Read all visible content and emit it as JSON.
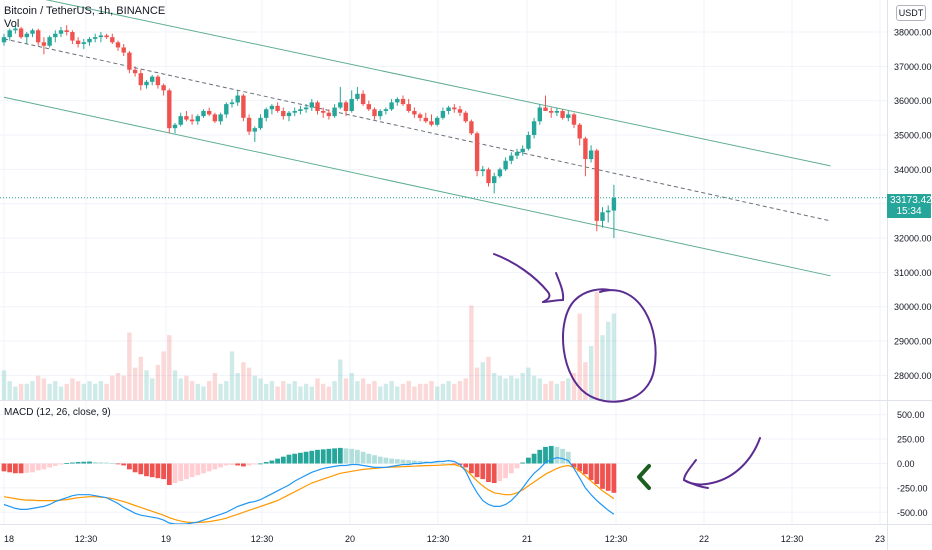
{
  "header": {
    "symbol": "Bitcoin / TetherUS, 1h, BINANCE",
    "volume_label": "Vol",
    "macd_label": "MACD (12, 26, close, 9)",
    "currency_button": "USDT"
  },
  "price_badge": {
    "value": "33173.42",
    "countdown": "15:34"
  },
  "colors": {
    "up": "#26a69a",
    "down": "#ef5350",
    "channel": "#5fae92",
    "macd_line": "#2196f3",
    "signal_line": "#ff9800",
    "annotation": "#5c2d91",
    "arrow_marker": "#1b5e20"
  },
  "chart_data": [
    {
      "type": "candlestick",
      "title": "Bitcoin / TetherUS, 1h, BINANCE",
      "x_tick_labels": [
        "18",
        "12:30",
        "19",
        "12:30",
        "20",
        "12:30",
        "21",
        "12:30",
        "22",
        "12:30",
        "23"
      ],
      "y_tick_labels": [
        "38000.00",
        "37000.00",
        "36000.00",
        "35000.00",
        "34000.00",
        "33000.00",
        "32000.00",
        "31000.00",
        "30000.00",
        "29000.00",
        "28000.00"
      ],
      "ylim": [
        27600,
        38400
      ],
      "last_price": 33173.42,
      "candles_ohlc": [
        [
          37700,
          37950,
          37600,
          37850
        ],
        [
          37850,
          38100,
          37750,
          38050
        ],
        [
          38050,
          38200,
          37950,
          38100
        ],
        [
          38100,
          38150,
          37800,
          37850
        ],
        [
          37850,
          38000,
          37650,
          37950
        ],
        [
          37950,
          38100,
          37850,
          38050
        ],
        [
          38050,
          38100,
          37600,
          37700
        ],
        [
          37700,
          37850,
          37350,
          37600
        ],
        [
          37600,
          37900,
          37550,
          37850
        ],
        [
          37850,
          38050,
          37700,
          37950
        ],
        [
          37950,
          38150,
          37850,
          38050
        ],
        [
          38050,
          38200,
          37900,
          38000
        ],
        [
          38000,
          38050,
          37650,
          37750
        ],
        [
          37750,
          37850,
          37550,
          37650
        ],
        [
          37650,
          37800,
          37500,
          37700
        ],
        [
          37700,
          37850,
          37600,
          37800
        ],
        [
          37800,
          37950,
          37700,
          37850
        ],
        [
          37850,
          38000,
          37700,
          37900
        ],
        [
          37900,
          37950,
          37800,
          37850
        ],
        [
          37850,
          37950,
          37650,
          37700
        ],
        [
          37700,
          37750,
          37450,
          37550
        ],
        [
          37550,
          37650,
          37300,
          37400
        ],
        [
          37400,
          37450,
          36800,
          36900
        ],
        [
          36900,
          37000,
          36700,
          36800
        ],
        [
          36800,
          36900,
          36300,
          36450
        ],
        [
          36450,
          36600,
          36350,
          36550
        ],
        [
          36550,
          36750,
          36450,
          36700
        ],
        [
          36700,
          36750,
          36350,
          36450
        ],
        [
          36450,
          36500,
          36150,
          36300
        ],
        [
          36300,
          36350,
          35050,
          35200
        ],
        [
          35200,
          35350,
          35050,
          35300
        ],
        [
          35300,
          35650,
          35250,
          35550
        ],
        [
          35550,
          35700,
          35400,
          35450
        ],
        [
          35450,
          35600,
          35300,
          35400
        ],
        [
          35400,
          35600,
          35300,
          35550
        ],
        [
          35550,
          35750,
          35500,
          35700
        ],
        [
          35700,
          35800,
          35550,
          35600
        ],
        [
          35600,
          35650,
          35350,
          35400
        ],
        [
          35400,
          35650,
          35300,
          35600
        ],
        [
          35600,
          35950,
          35500,
          35900
        ],
        [
          35900,
          36050,
          35800,
          35950
        ],
        [
          35950,
          36300,
          35850,
          36150
        ],
        [
          36150,
          36200,
          35400,
          35500
        ],
        [
          35500,
          35600,
          35000,
          35100
        ],
        [
          35100,
          35250,
          34800,
          35200
        ],
        [
          35200,
          35600,
          35150,
          35500
        ],
        [
          35500,
          35800,
          35400,
          35750
        ],
        [
          35750,
          35900,
          35600,
          35850
        ],
        [
          35850,
          35950,
          35650,
          35700
        ],
        [
          35700,
          35800,
          35450,
          35550
        ],
        [
          35550,
          35700,
          35400,
          35650
        ],
        [
          35650,
          35800,
          35550,
          35700
        ],
        [
          35700,
          35850,
          35600,
          35750
        ],
        [
          35750,
          35900,
          35650,
          35800
        ],
        [
          35800,
          36050,
          35700,
          35950
        ],
        [
          35950,
          36000,
          35600,
          35700
        ],
        [
          35700,
          35800,
          35500,
          35650
        ],
        [
          35650,
          35750,
          35450,
          35550
        ],
        [
          35550,
          35900,
          35500,
          35800
        ],
        [
          35800,
          36400,
          35750,
          35950
        ],
        [
          35950,
          36000,
          35550,
          35700
        ],
        [
          35700,
          36300,
          35650,
          36050
        ],
        [
          36050,
          36400,
          36000,
          36200
        ],
        [
          36200,
          36300,
          35850,
          35900
        ],
        [
          35900,
          36000,
          35700,
          35750
        ],
        [
          35750,
          35800,
          35450,
          35550
        ],
        [
          35550,
          35750,
          35450,
          35700
        ],
        [
          35700,
          35800,
          35600,
          35750
        ],
        [
          35750,
          36050,
          35700,
          35950
        ],
        [
          35950,
          36100,
          35850,
          36050
        ],
        [
          36050,
          36150,
          35850,
          35900
        ],
        [
          35900,
          36050,
          35650,
          35700
        ],
        [
          35700,
          35800,
          35500,
          35600
        ],
        [
          35600,
          35650,
          35400,
          35500
        ],
        [
          35500,
          35650,
          35350,
          35400
        ],
        [
          35400,
          35600,
          35250,
          35300
        ],
        [
          35300,
          35550,
          35250,
          35500
        ],
        [
          35500,
          35800,
          35450,
          35700
        ],
        [
          35700,
          35850,
          35600,
          35800
        ],
        [
          35800,
          35900,
          35650,
          35750
        ],
        [
          35750,
          35850,
          35550,
          35650
        ],
        [
          35650,
          35700,
          35350,
          35400
        ],
        [
          35400,
          35450,
          35000,
          35050
        ],
        [
          35050,
          35100,
          33800,
          33950
        ],
        [
          33950,
          34100,
          33800,
          34000
        ],
        [
          34000,
          34050,
          33500,
          33600
        ],
        [
          33600,
          33900,
          33300,
          33800
        ],
        [
          33800,
          34050,
          33750,
          34000
        ],
        [
          34000,
          34350,
          33950,
          34250
        ],
        [
          34250,
          34500,
          34150,
          34400
        ],
        [
          34400,
          34600,
          34300,
          34500
        ],
        [
          34500,
          34700,
          34400,
          34600
        ],
        [
          34600,
          35100,
          34550,
          35000
        ],
        [
          35000,
          35500,
          34900,
          35400
        ],
        [
          35400,
          35900,
          35300,
          35800
        ],
        [
          35800,
          36150,
          35700,
          35700
        ],
        [
          35700,
          35800,
          35500,
          35650
        ],
        [
          35650,
          35800,
          35550,
          35700
        ],
        [
          35700,
          35750,
          35450,
          35500
        ],
        [
          35500,
          35700,
          35400,
          35600
        ],
        [
          35600,
          35650,
          35200,
          35300
        ],
        [
          35300,
          35350,
          34700,
          34900
        ],
        [
          34900,
          34950,
          33800,
          34300
        ],
        [
          34300,
          34700,
          34200,
          34550
        ],
        [
          34550,
          34600,
          32200,
          32500
        ],
        [
          32500,
          32900,
          32300,
          32750
        ],
        [
          32750,
          32950,
          32450,
          32800
        ],
        [
          32800,
          33550,
          32000,
          33173.42
        ]
      ],
      "channel_lines": [
        {
          "name": "upper",
          "from": {
            "bar": 0,
            "price": 39200
          },
          "to": {
            "bar": 145,
            "price": 34100
          }
        },
        {
          "name": "middle",
          "from": {
            "bar": 0,
            "price": 37800
          },
          "to": {
            "bar": 145,
            "price": 32500
          },
          "style": "dashed"
        },
        {
          "name": "lower",
          "from": {
            "bar": 0,
            "price": 36100
          },
          "to": {
            "bar": 145,
            "price": 30900
          }
        }
      ],
      "volume": {
        "label": "Vol",
        "values": [
          0.11,
          0.07,
          0.05,
          0.06,
          0.06,
          0.07,
          0.09,
          0.08,
          0.06,
          0.07,
          0.05,
          0.06,
          0.08,
          0.07,
          0.06,
          0.07,
          0.06,
          0.07,
          0.06,
          0.09,
          0.1,
          0.09,
          0.25,
          0.12,
          0.16,
          0.11,
          0.08,
          0.13,
          0.18,
          0.24,
          0.11,
          0.08,
          0.09,
          0.07,
          0.06,
          0.05,
          0.07,
          0.1,
          0.06,
          0.07,
          0.18,
          0.1,
          0.14,
          0.12,
          0.09,
          0.08,
          0.06,
          0.07,
          0.05,
          0.07,
          0.06,
          0.07,
          0.05,
          0.06,
          0.05,
          0.08,
          0.06,
          0.05,
          0.07,
          0.15,
          0.08,
          0.1,
          0.07,
          0.08,
          0.06,
          0.07,
          0.05,
          0.06,
          0.07,
          0.05,
          0.06,
          0.07,
          0.05,
          0.06,
          0.06,
          0.07,
          0.05,
          0.06,
          0.07,
          0.06,
          0.07,
          0.08,
          0.35,
          0.12,
          0.14,
          0.16,
          0.1,
          0.09,
          0.08,
          0.09,
          0.08,
          0.1,
          0.12,
          0.09,
          0.08,
          0.06,
          0.07,
          0.06,
          0.07,
          0.08,
          0.1,
          0.32,
          0.14,
          0.2,
          0.4,
          0.24,
          0.29,
          0.32
        ]
      }
    },
    {
      "type": "macd",
      "title": "MACD (12, 26, close, 9)",
      "y_tick_labels": [
        "500.00",
        "250.00",
        "0.00",
        "-250.00",
        "-500.00"
      ],
      "ylim": [
        -620,
        620
      ],
      "histogram": [
        -80,
        -90,
        -100,
        -100,
        -95,
        -90,
        -70,
        -60,
        -40,
        -25,
        -10,
        5,
        10,
        15,
        18,
        20,
        15,
        12,
        10,
        5,
        -5,
        -20,
        -60,
        -90,
        -110,
        -130,
        -140,
        -150,
        -160,
        -220,
        -200,
        -180,
        -160,
        -140,
        -120,
        -100,
        -80,
        -60,
        -40,
        -20,
        -15,
        -20,
        -30,
        -20,
        -10,
        0,
        15,
        30,
        50,
        70,
        90,
        100,
        110,
        120,
        130,
        140,
        145,
        150,
        155,
        160,
        155,
        150,
        140,
        120,
        100,
        85,
        70,
        60,
        50,
        45,
        40,
        35,
        30,
        25,
        20,
        15,
        10,
        5,
        0,
        -5,
        -15,
        -40,
        -100,
        -140,
        -160,
        -190,
        -200,
        -180,
        -150,
        -100,
        -50,
        10,
        60,
        100,
        140,
        170,
        180,
        170,
        150,
        120,
        -40,
        -80,
        -110,
        -170,
        -210,
        -260,
        -280,
        -300
      ],
      "macd_line": [
        -420,
        -440,
        -460,
        -470,
        -470,
        -460,
        -450,
        -440,
        -420,
        -390,
        -370,
        -350,
        -330,
        -320,
        -320,
        -320,
        -330,
        -340,
        -350,
        -380,
        -410,
        -450,
        -480,
        -510,
        -530,
        -540,
        -550,
        -560,
        -580,
        -610,
        -620,
        -620,
        -620,
        -610,
        -600,
        -580,
        -560,
        -540,
        -520,
        -500,
        -470,
        -440,
        -420,
        -400,
        -390,
        -370,
        -340,
        -310,
        -280,
        -250,
        -220,
        -180,
        -150,
        -120,
        -90,
        -70,
        -50,
        -40,
        -30,
        -20,
        -20,
        -10,
        -10,
        -20,
        -30,
        -40,
        -40,
        -40,
        -30,
        -20,
        -10,
        -10,
        0,
        0,
        10,
        10,
        20,
        20,
        30,
        20,
        -10,
        -80,
        -200,
        -300,
        -380,
        -420,
        -440,
        -440,
        -420,
        -380,
        -320,
        -250,
        -170,
        -100,
        -50,
        10,
        40,
        60,
        50,
        30,
        -50,
        -150,
        -250,
        -320,
        -380,
        -430,
        -480,
        -520
      ],
      "signal_line": [
        -340,
        -350,
        -360,
        -370,
        -375,
        -375,
        -380,
        -380,
        -380,
        -380,
        -375,
        -370,
        -360,
        -350,
        -345,
        -340,
        -340,
        -345,
        -350,
        -360,
        -375,
        -390,
        -410,
        -430,
        -450,
        -470,
        -490,
        -510,
        -530,
        -555,
        -575,
        -590,
        -600,
        -605,
        -605,
        -600,
        -595,
        -585,
        -575,
        -560,
        -540,
        -520,
        -500,
        -480,
        -460,
        -440,
        -420,
        -400,
        -380,
        -350,
        -320,
        -290,
        -260,
        -230,
        -200,
        -180,
        -160,
        -140,
        -120,
        -100,
        -90,
        -80,
        -70,
        -60,
        -55,
        -50,
        -45,
        -40,
        -38,
        -35,
        -33,
        -30,
        -28,
        -25,
        -22,
        -20,
        -18,
        -15,
        -12,
        -10,
        -30,
        -60,
        -120,
        -180,
        -230,
        -270,
        -300,
        -310,
        -320,
        -320,
        -300,
        -270,
        -230,
        -190,
        -150,
        -110,
        -80,
        -50,
        -30,
        -20,
        -40,
        -80,
        -130,
        -180,
        -230,
        -280,
        -320,
        -360
      ]
    }
  ],
  "x_axis_labels": [
    "18",
    "12:30",
    "19",
    "12:30",
    "20",
    "12:30",
    "21",
    "12:30",
    "22",
    "12:30",
    "23"
  ]
}
